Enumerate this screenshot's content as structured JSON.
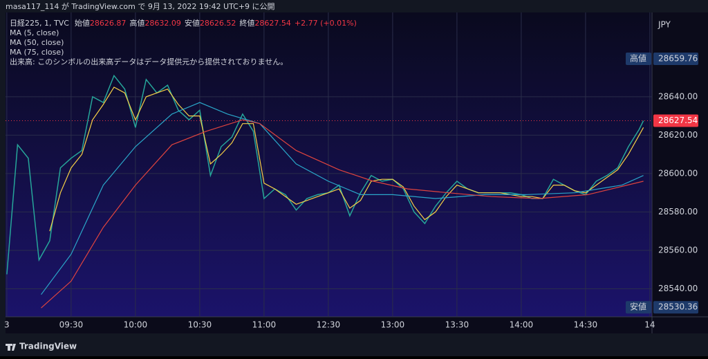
{
  "header": {
    "text": "masa117_114 が TradingView.com で 9月 13, 2022 19:42 UTC+9 に公開"
  },
  "footer": {
    "logo": "TradingView"
  },
  "chart_data": {
    "type": "line",
    "ohlc": [
      {
        "label": "始値",
        "value": 28626.87
      },
      {
        "label": "高値",
        "value": 28632.09
      },
      {
        "label": "安値",
        "value": 28626.52
      },
      {
        "label": "終値",
        "value": 28627.54
      }
    ],
    "change": "+2.77 (+0.01%)",
    "volume_note": "出来高: このシンボルの出来高データはデータ提供元から提供されておりません。",
    "currency": "JPY",
    "high_marker": {
      "label": "高値",
      "value": 28659.76
    },
    "low_marker": {
      "label": "安値",
      "value": 28530.36
    },
    "xlim": [
      -0.6,
      301
    ],
    "ylim": [
      28525.4,
      28683.9
    ],
    "xticks": [
      {
        "value": 0,
        "label": "3"
      },
      {
        "value": 30,
        "label": "09:30"
      },
      {
        "value": 60,
        "label": "10:00"
      },
      {
        "value": 90,
        "label": "10:30"
      },
      {
        "value": 120,
        "label": "11:00"
      },
      {
        "value": 150,
        "label": "12:30"
      },
      {
        "value": 180,
        "label": "13:00"
      },
      {
        "value": 210,
        "label": "13:30"
      },
      {
        "value": 240,
        "label": "14:00"
      },
      {
        "value": 270,
        "label": "14:30"
      },
      {
        "value": 300,
        "label": "14"
      }
    ],
    "yticks": [
      {
        "value": 28540,
        "label": "28540.00"
      },
      {
        "value": 28560,
        "label": "28560.00"
      },
      {
        "value": 28580,
        "label": "28580.00"
      },
      {
        "value": 28600,
        "label": "28600.00"
      },
      {
        "value": 28620,
        "label": "28620.00"
      },
      {
        "value": 28640,
        "label": "28640.00"
      }
    ],
    "grid": true,
    "series": [
      {
        "name": "日経225, 1, TVC",
        "color": "#26a69a",
        "x": [
          0,
          5,
          10,
          15,
          20,
          25,
          30,
          35,
          40,
          45,
          50,
          55,
          60,
          65,
          70,
          75,
          80,
          85,
          90,
          95,
          100,
          105,
          110,
          115,
          120,
          125,
          130,
          135,
          140,
          145,
          150,
          155,
          160,
          165,
          170,
          175,
          180,
          185,
          190,
          195,
          200,
          205,
          210,
          215,
          220,
          225,
          230,
          235,
          240,
          245,
          250,
          255,
          260,
          265,
          270,
          275,
          280,
          285,
          290,
          295,
          297
        ],
        "values": [
          28547.5,
          28615,
          28608,
          28555,
          28565,
          28603,
          28608,
          28612,
          28640,
          28637,
          28651,
          28644,
          28624,
          28649,
          28642,
          28646,
          28633,
          28628,
          28633,
          28599,
          28614,
          28619,
          28631,
          28622,
          28587,
          28592,
          28589,
          28581,
          28587,
          28589,
          28590,
          28594,
          28578,
          28590,
          28599,
          28596,
          28597,
          28592,
          28580,
          28574,
          28583,
          28590,
          28596,
          28592,
          28590,
          28590,
          28590,
          28590,
          28589,
          28587,
          28587,
          28597,
          28594,
          28591,
          28589,
          28596,
          28599,
          28603,
          28614,
          28623,
          28627.54
        ]
      },
      {
        "name": "MA (5, close)",
        "color": "#f7d046",
        "x": [
          20,
          25,
          30,
          35,
          40,
          45,
          50,
          55,
          60,
          65,
          70,
          75,
          80,
          85,
          90,
          95,
          100,
          105,
          110,
          115,
          120,
          125,
          130,
          135,
          140,
          145,
          150,
          155,
          160,
          165,
          170,
          175,
          180,
          185,
          190,
          195,
          200,
          205,
          210,
          215,
          220,
          225,
          230,
          235,
          240,
          245,
          250,
          255,
          260,
          265,
          270,
          275,
          280,
          285,
          290,
          295,
          297
        ],
        "values": [
          28570,
          28590,
          28603,
          28610,
          28628,
          28636,
          28645,
          28642,
          28628,
          28640,
          28642,
          28644,
          28636,
          28630,
          28630,
          28605,
          28610,
          28616,
          28626,
          28626,
          28595,
          28592,
          28588,
          28584,
          28586,
          28588,
          28590,
          28592,
          28582,
          28586,
          28596,
          28597,
          28597,
          28593,
          28583,
          28576,
          28580,
          28588,
          28594,
          28592,
          28590,
          28590,
          28590,
          28589,
          28588,
          28588,
          28587,
          28594,
          28594,
          28591,
          28590,
          28594,
          28598,
          28602,
          28610,
          28620,
          28624
        ]
      },
      {
        "name": "MA (50, close)",
        "color": "#2aa7c9",
        "x": [
          16,
          30,
          45,
          60,
          77,
          90,
          103,
          118,
          135,
          150,
          165,
          180,
          200,
          223,
          242,
          265,
          287,
          297
        ],
        "values": [
          28537,
          28558,
          28594,
          28614,
          28631,
          28637,
          28631,
          28626,
          28605,
          28596,
          28589,
          28589,
          28587,
          28589,
          28589,
          28590,
          28594,
          28599
        ]
      },
      {
        "name": "MA (75, close)",
        "color": "#e0443e",
        "x": [
          16,
          30,
          45,
          60,
          77,
          93,
          110,
          118,
          135,
          155,
          171,
          187,
          206,
          226,
          248,
          271,
          297
        ],
        "values": [
          28530,
          28544,
          28572,
          28594,
          28615,
          28622,
          28628,
          28626,
          28612,
          28602,
          28596,
          28592,
          28590,
          28588,
          28587,
          28589,
          28596
        ]
      }
    ]
  }
}
